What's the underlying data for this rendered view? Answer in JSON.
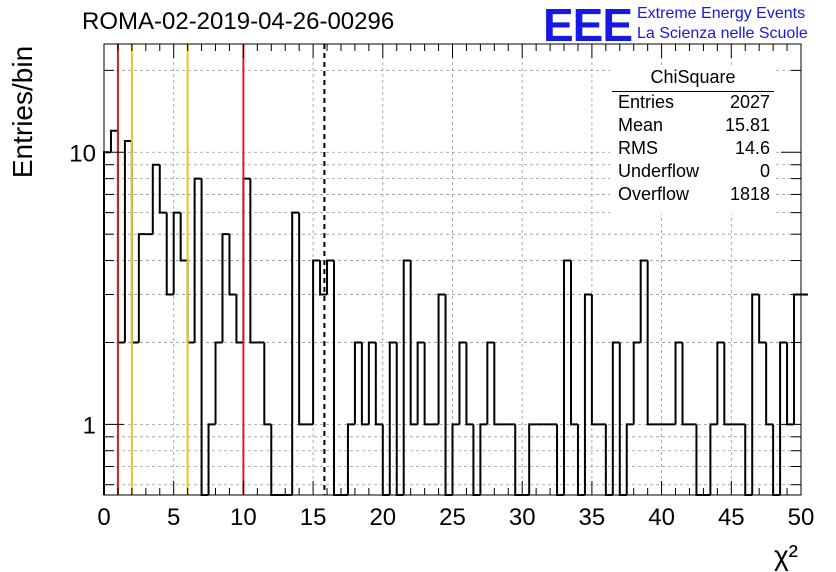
{
  "header": {
    "run_title": "ROMA-02-2019-04-26-00296",
    "logo_text": "EEE",
    "logo_line1": "Extreme Energy Events",
    "logo_line2": "La Scienza nelle Scuole",
    "logo_color": "#1818e6"
  },
  "stats_box": {
    "title": "ChiSquare",
    "rows": [
      {
        "key": "Entries",
        "value": "2027"
      },
      {
        "key": "Mean",
        "value": "15.81"
      },
      {
        "key": "RMS",
        "value": "14.6"
      },
      {
        "key": "Underflow",
        "value": "0"
      },
      {
        "key": "Overflow",
        "value": "1818"
      }
    ]
  },
  "chart_data": {
    "type": "histogram",
    "title": "ROMA-02-2019-04-26-00296",
    "xlabel": "χ²",
    "ylabel": "Entries/bin",
    "xlim": [
      0,
      50
    ],
    "ylim": [
      0.55,
      25
    ],
    "yscale": "log",
    "grid": true,
    "bin_width": 0.5,
    "bin_start": 0,
    "x_ticks": [
      0,
      5,
      10,
      15,
      20,
      25,
      30,
      35,
      40,
      45,
      50
    ],
    "y_tick_labels": [
      1,
      10
    ],
    "counts": [
      10,
      12,
      2,
      11,
      2,
      5,
      5,
      9,
      6,
      3,
      6,
      4,
      2,
      8,
      0,
      1,
      2,
      5,
      3,
      2,
      8,
      2,
      2,
      1,
      0,
      0,
      0,
      6,
      1,
      1,
      4,
      3,
      4,
      0,
      0,
      1,
      2,
      1,
      2,
      1,
      0,
      2,
      0,
      4,
      1,
      2,
      1,
      1,
      3,
      0,
      1,
      2,
      1,
      0,
      1,
      2,
      1,
      1,
      1,
      0,
      0,
      1,
      1,
      1,
      1,
      0,
      4,
      1,
      0,
      3,
      1,
      1,
      0,
      2,
      0,
      1,
      2,
      4,
      1,
      1,
      1,
      1,
      2,
      1,
      1,
      0,
      0,
      1,
      2,
      1,
      1,
      1,
      0,
      3,
      2,
      1,
      0,
      2,
      1,
      3,
      3
    ],
    "vertical_lines": [
      {
        "x": 1.0,
        "color": "#d62020",
        "style": "solid"
      },
      {
        "x": 2.0,
        "color": "#f0c020",
        "style": "solid"
      },
      {
        "x": 6.0,
        "color": "#f0c020",
        "style": "solid"
      },
      {
        "x": 10.0,
        "color": "#d62020",
        "style": "solid"
      },
      {
        "x": 15.81,
        "color": "#000000",
        "style": "dashed"
      }
    ],
    "line_color": "#000000"
  }
}
